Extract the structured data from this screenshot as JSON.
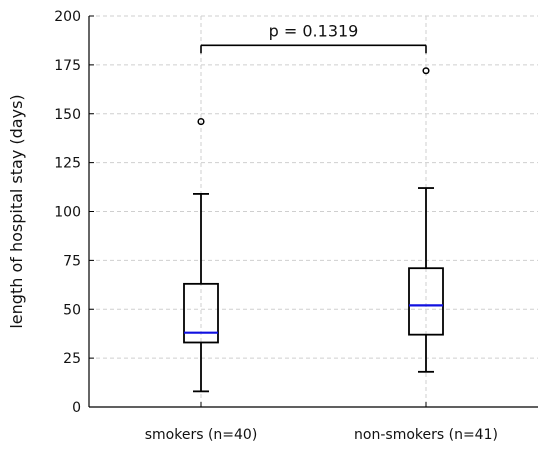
{
  "chart_data": {
    "type": "box",
    "title": "",
    "xlabel": "",
    "ylabel": "length of hospital stay (days)",
    "ylim": [
      0,
      200
    ],
    "yticks": [
      0,
      25,
      50,
      75,
      100,
      125,
      150,
      175,
      200
    ],
    "grid": true,
    "categories": [
      "smokers (n=40)",
      "non-smokers (n=41)"
    ],
    "boxes": [
      {
        "name": "smokers (n=40)",
        "whisker_low": 8,
        "q1": 33,
        "median": 38,
        "q3": 63,
        "whisker_high": 109,
        "outliers": [
          146
        ]
      },
      {
        "name": "non-smokers (n=41)",
        "whisker_low": 18,
        "q1": 37,
        "median": 52,
        "q3": 71,
        "whisker_high": 112,
        "outliers": [
          172
        ]
      }
    ],
    "annotation": {
      "text": "p = 0.1319",
      "y": 185
    },
    "colors": {
      "box": "#000000",
      "median": "#1010e0",
      "grid": "#cfcfcf"
    }
  }
}
